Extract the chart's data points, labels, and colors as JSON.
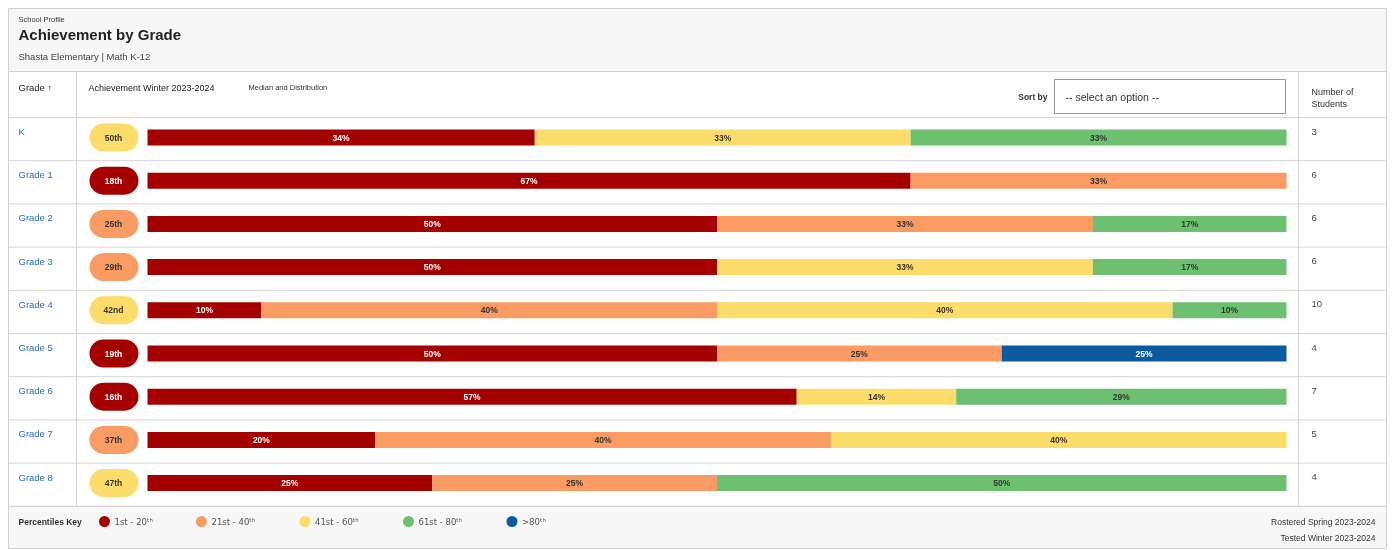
{
  "chart_data": {
    "type": "bar",
    "orientation": "horizontal",
    "stacked": true,
    "title": "Achievement by Grade",
    "subtitle": "Shasta Elementary | Math K-12",
    "ylabel": "Grade ↑",
    "legend_title": "Percentiles Key",
    "legend": "bottom left",
    "grid": false,
    "categories": [
      "K",
      "Grade 1",
      "Grade 2",
      "Grade 3",
      "Grade 4",
      "Grade 5",
      "Grade 6",
      "Grade 7",
      "Grade 8"
    ],
    "series": [
      {
        "name": "1st - 20ᵗʰ",
        "color": "#a50000",
        "values": [
          34,
          67,
          50,
          50,
          10,
          50,
          57,
          20,
          25
        ],
        "value_labels": [
          "34%",
          "67%",
          "50%",
          "50%",
          "10%",
          "50%",
          "57%",
          "20%",
          "25%"
        ]
      },
      {
        "name": "21st - 40ᵗʰ",
        "color": "#f99b62",
        "values": [
          null,
          33,
          33,
          null,
          40,
          25,
          null,
          40,
          25
        ],
        "value_labels": [
          null,
          "33%",
          "33%",
          null,
          "40%",
          "25%",
          null,
          "40%",
          "25%"
        ]
      },
      {
        "name": "41st - 60ᵗʰ",
        "color": "#fcdc6a",
        "values": [
          33,
          null,
          null,
          33,
          40,
          null,
          14,
          40,
          null
        ],
        "value_labels": [
          "33%",
          null,
          null,
          "33%",
          "40%",
          null,
          "14%",
          "40%",
          null
        ]
      },
      {
        "name": "61st - 80ᵗʰ",
        "color": "#6cc070",
        "values": [
          33,
          null,
          17,
          17,
          10,
          null,
          29,
          null,
          50
        ],
        "value_labels": [
          "33%",
          null,
          "17%",
          "17%",
          "10%",
          null,
          "29%",
          null,
          "50%"
        ]
      },
      {
        "name": ">80ᵗʰ",
        "color": "#0b5aa0",
        "values": [
          null,
          null,
          null,
          null,
          null,
          25,
          null,
          null,
          null
        ],
        "value_labels": [
          null,
          null,
          null,
          null,
          null,
          "25%",
          null,
          null,
          null
        ]
      }
    ],
    "annotations": [
      "School Profile",
      "Achievement Winter 2023-2024",
      "Median and Distribution",
      "Sort by",
      "-- select an option --",
      "Number of Students",
      "Rostered Spring 2023-2024",
      "Tested Winter 2023-2024",
      "50th",
      "18th",
      "25th",
      "29th",
      "42nd",
      "19th",
      "16th",
      "37th",
      "47th",
      "3",
      "6",
      "6",
      "6",
      "10",
      "4",
      "7",
      "5",
      "4"
    ]
  }
}
